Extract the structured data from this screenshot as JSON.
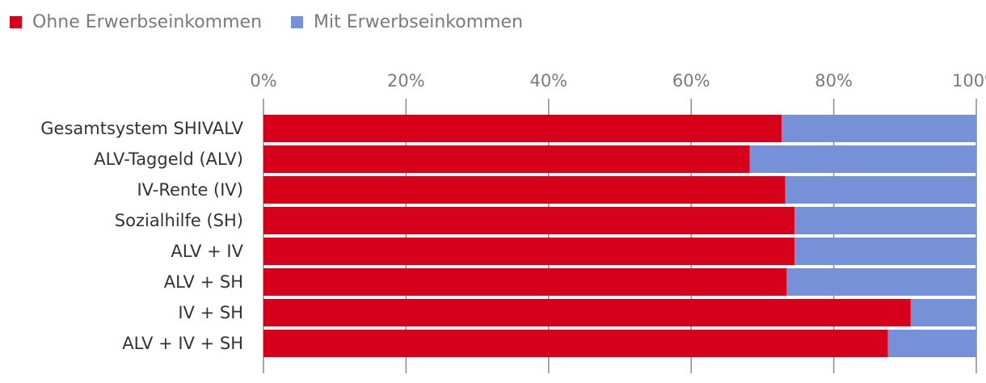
{
  "colors": {
    "ohne": "#d7001b",
    "mit": "#7791d8",
    "axis": "#8a8a8a"
  },
  "legend": [
    {
      "label": "Ohne Erwerbseinkommen",
      "color": "#d7001b"
    },
    {
      "label": "Mit Erwerbseinkommen",
      "color": "#7791d8"
    }
  ],
  "chart_data": {
    "type": "bar",
    "orientation": "horizontal",
    "stacked": true,
    "categories": [
      "Gesamtsystem SHIVALV",
      "ALV-Taggeld (ALV)",
      "IV-Rente (IV)",
      "Sozialhilfe (SH)",
      "ALV + IV",
      "ALV + SH",
      "IV + SH",
      "ALV + IV + SH"
    ],
    "series": [
      {
        "name": "Ohne Erwerbseinkommen",
        "values": [
          72.7,
          68.2,
          73.2,
          74.5,
          74.5,
          73.4,
          90.8,
          87.6
        ]
      },
      {
        "name": "Mit Erwerbseinkommen",
        "values": [
          27.3,
          31.8,
          26.8,
          25.5,
          25.5,
          26.6,
          9.2,
          12.4
        ]
      }
    ],
    "xlim": [
      0,
      100
    ],
    "ticks": [
      "0%",
      "20%",
      "40%",
      "60%",
      "80%",
      "100%"
    ],
    "grid": true,
    "legend_position": "top-left"
  }
}
